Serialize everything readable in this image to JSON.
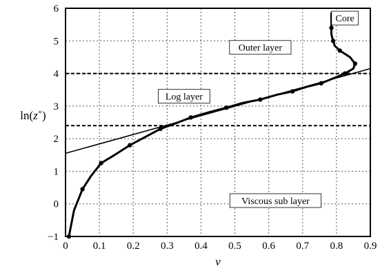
{
  "chart_data": {
    "type": "line",
    "xlabel": "v",
    "ylabel": "ln(z+)",
    "xlim": [
      0,
      0.9
    ],
    "ylim": [
      -1,
      6
    ],
    "x_ticks": [
      "0",
      "0.1",
      "0.2",
      "0.3",
      "0.4",
      "0.5",
      "0.6",
      "0.7",
      "0.8",
      "0.9"
    ],
    "y_ticks": [
      "−1",
      "0",
      "1",
      "2",
      "3",
      "4",
      "5",
      "6"
    ],
    "grid": true,
    "series": [
      {
        "kind": "profile",
        "style": "thick line with dot markers",
        "color": "#000000",
        "x": [
          0.01,
          0.025,
          0.05,
          0.075,
          0.105,
          0.145,
          0.19,
          0.235,
          0.28,
          0.32,
          0.37,
          0.42,
          0.475,
          0.525,
          0.575,
          0.625,
          0.67,
          0.715,
          0.755,
          0.79,
          0.825,
          0.85,
          0.855,
          0.84,
          0.81,
          0.795,
          0.79,
          0.785,
          0.785,
          0.785,
          0.785,
          0.785
        ],
        "y": [
          -1.0,
          -0.2,
          0.45,
          0.85,
          1.25,
          1.5,
          1.8,
          2.05,
          2.3,
          2.45,
          2.65,
          2.8,
          2.95,
          3.1,
          3.2,
          3.35,
          3.45,
          3.6,
          3.7,
          3.85,
          4.0,
          4.15,
          4.3,
          4.5,
          4.7,
          4.85,
          5.0,
          5.2,
          5.4,
          5.6,
          5.75,
          5.85
        ],
        "markers_at": [
          0,
          2,
          4,
          6,
          8,
          10,
          12,
          14,
          16,
          18,
          20,
          22,
          24,
          26,
          28
        ]
      },
      {
        "kind": "log-law fit",
        "style": "thin line",
        "color": "#000000",
        "x": [
          0,
          0.9
        ],
        "y": [
          1.55,
          4.15
        ]
      }
    ],
    "reference_lines": [
      {
        "y": 4.0,
        "style": "dashed"
      },
      {
        "y": 2.4,
        "style": "dashed"
      }
    ],
    "annotations": [
      {
        "text": "Core",
        "x": 0.825,
        "y": 5.7,
        "boxed": true
      },
      {
        "text": "Outer layer",
        "x": 0.575,
        "y": 4.8,
        "boxed": true
      },
      {
        "text": "Log layer",
        "x": 0.35,
        "y": 3.3,
        "boxed": true
      },
      {
        "text": "Viscous sub layer",
        "x": 0.62,
        "y": 0.1,
        "boxed": true
      }
    ]
  }
}
